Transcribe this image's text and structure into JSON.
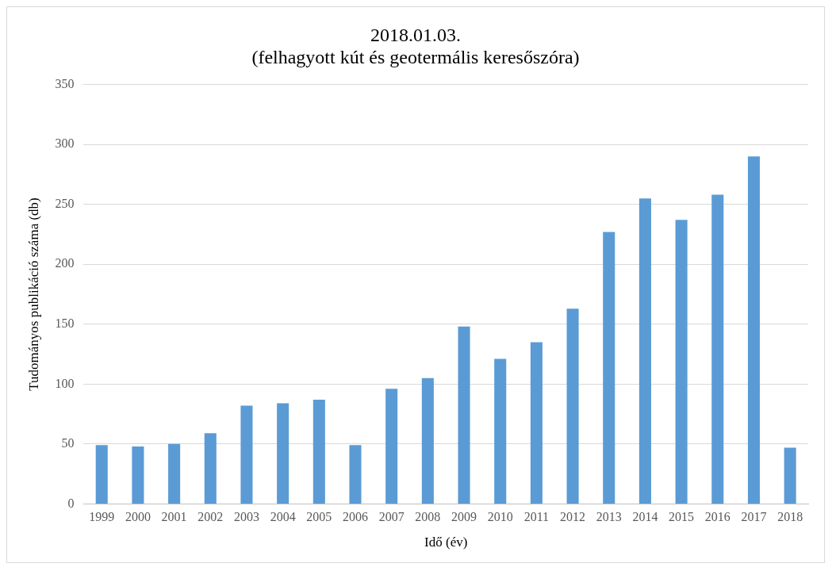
{
  "chart_data": {
    "type": "bar",
    "title": "2018.01.03.",
    "subtitle": "(felhagyott kút és geotermális keresőszóra)",
    "xlabel": "Idő (év)",
    "ylabel": "Tudományos publikáció száma (db)",
    "categories": [
      "1999",
      "2000",
      "2001",
      "2002",
      "2003",
      "2004",
      "2005",
      "2006",
      "2007",
      "2008",
      "2009",
      "2010",
      "2011",
      "2012",
      "2013",
      "2014",
      "2015",
      "2016",
      "2017",
      "2018"
    ],
    "values": [
      49,
      48,
      50,
      59,
      82,
      84,
      87,
      49,
      96,
      105,
      148,
      121,
      135,
      163,
      227,
      255,
      237,
      258,
      290,
      47
    ],
    "color": "#5b9bd5",
    "ylim": [
      0,
      350
    ],
    "yticks": [
      0,
      50,
      100,
      150,
      200,
      250,
      300,
      350
    ],
    "grid": "y",
    "legend": false
  }
}
